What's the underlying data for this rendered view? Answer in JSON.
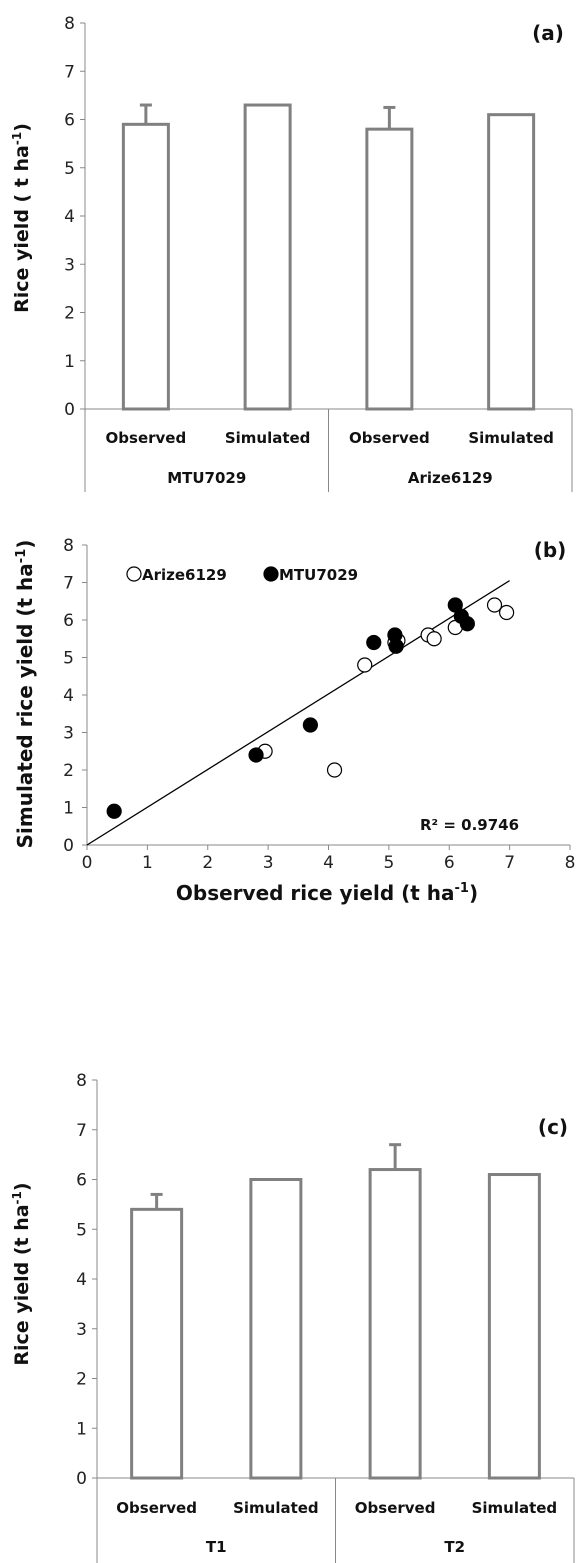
{
  "chart_data": [
    {
      "type": "bar",
      "panel_label": "(a)",
      "ylabel": "Rice yield ( t ha",
      "ylabel_sup": "-1",
      "ylabel_tail": ")",
      "ylim": [
        0,
        8
      ],
      "yticks": [
        "0",
        "1",
        "2",
        "3",
        "4",
        "5",
        "6",
        "7",
        "8"
      ],
      "categories": [
        "Observed",
        "Simulated",
        "Observed",
        "Simulated"
      ],
      "groups": [
        "MTU7029",
        "Arize6129"
      ],
      "values": [
        5.9,
        6.3,
        5.8,
        6.1
      ],
      "error_upper": [
        0.4,
        0,
        0.45,
        0
      ],
      "bar_color": "#808080"
    },
    {
      "type": "scatter",
      "panel_label": "(b)",
      "xlabel": "Observed rice yield (t ha",
      "xlabel_sup": "-1",
      "xlabel_tail": ")",
      "ylabel": "Simulated rice yield (t ha",
      "ylabel_sup": "-1",
      "ylabel_tail": ")",
      "xlim": [
        0,
        8
      ],
      "ylim": [
        0,
        8
      ],
      "xticks": [
        "0",
        "1",
        "2",
        "3",
        "4",
        "5",
        "6",
        "7",
        "8"
      ],
      "yticks": [
        "0",
        "1",
        "2",
        "3",
        "4",
        "5",
        "6",
        "7",
        "8"
      ],
      "legend_position": "top-left",
      "r2_label": "R² = 0.9746",
      "fit_line": {
        "x": [
          0,
          7
        ],
        "y": [
          0,
          7.05
        ]
      },
      "series": [
        {
          "name": "Arize6129",
          "marker": "open-circle",
          "x": [
            2.95,
            4.1,
            4.6,
            5.1,
            5.15,
            5.65,
            5.75,
            6.1,
            6.75,
            6.95
          ],
          "y": [
            2.5,
            2.0,
            4.8,
            5.4,
            5.45,
            5.6,
            5.5,
            5.8,
            6.4,
            6.2
          ]
        },
        {
          "name": "MTU7029",
          "marker": "filled-circle",
          "x": [
            0.45,
            2.8,
            3.7,
            4.75,
            5.1,
            5.12,
            6.1,
            6.2,
            6.3
          ],
          "y": [
            0.9,
            2.4,
            3.2,
            5.4,
            5.6,
            5.3,
            6.4,
            6.1,
            5.9
          ]
        }
      ]
    },
    {
      "type": "bar",
      "panel_label": "(c)",
      "ylabel": "Rice yield (t ha",
      "ylabel_sup": "-1",
      "ylabel_tail": ")",
      "ylim": [
        0,
        8
      ],
      "yticks": [
        "0",
        "1",
        "2",
        "3",
        "4",
        "5",
        "6",
        "7",
        "8"
      ],
      "categories": [
        "Observed",
        "Simulated",
        "Observed",
        "Simulated"
      ],
      "groups": [
        "T1",
        "T2"
      ],
      "values": [
        5.4,
        6.0,
        6.2,
        6.1
      ],
      "error_upper": [
        0.3,
        0,
        0.5,
        0
      ],
      "bar_color": "#808080"
    }
  ]
}
